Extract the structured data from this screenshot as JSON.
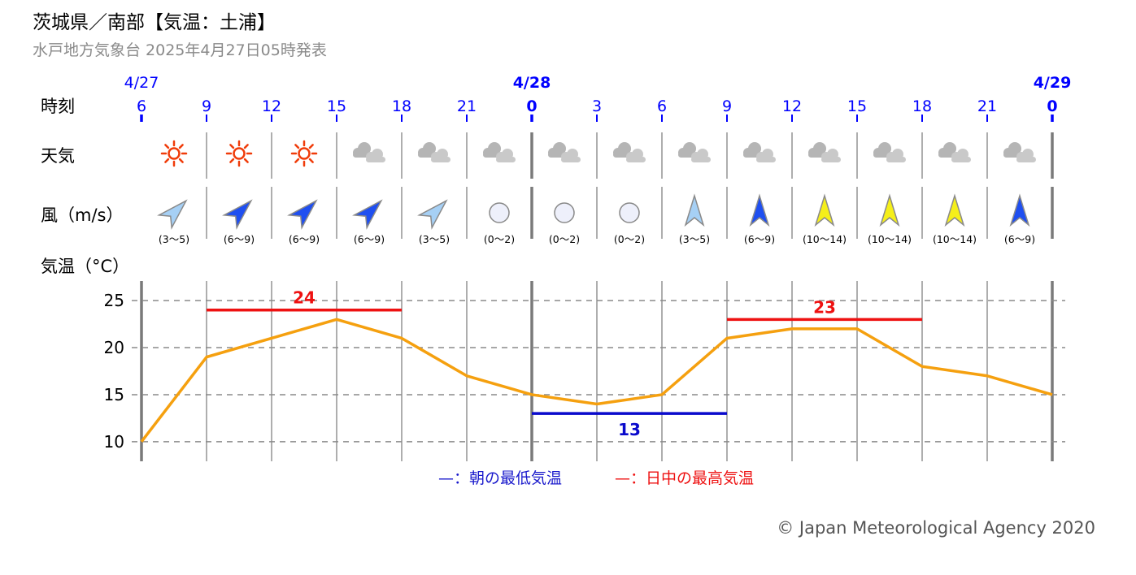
{
  "title": "茨城県／南部【気温：土浦】",
  "subtitle": "水戸地方気象台 2025年4月27日05時発表",
  "copyright": "© Japan Meteorological Agency 2020",
  "row_labels": {
    "time": "時刻",
    "weather": "天気",
    "wind": "風（m/s）",
    "temp": "気温（°C）"
  },
  "dates": [
    {
      "label": "4/27",
      "bold": false
    },
    {
      "label": "4/28",
      "bold": true
    },
    {
      "label": "4/29",
      "bold": true
    }
  ],
  "hours": [
    "6",
    "9",
    "12",
    "15",
    "18",
    "21",
    "0",
    "3",
    "6",
    "9",
    "12",
    "15",
    "18",
    "21",
    "0"
  ],
  "weather": [
    "sunny-icon",
    "sunny-icon",
    "sunny-icon",
    "cloudy-icon",
    "cloudy-icon",
    "cloudy-icon",
    "cloudy-icon",
    "cloudy-icon",
    "cloudy-icon",
    "cloudy-icon",
    "cloudy-icon",
    "cloudy-icon",
    "cloudy-icon",
    "cloudy-icon"
  ],
  "wind": [
    {
      "dir": "southwest",
      "speed": "(3〜5)",
      "color": "#a6d0f5"
    },
    {
      "dir": "southwest",
      "speed": "(6〜9)",
      "color": "#1f4ff0"
    },
    {
      "dir": "southwest",
      "speed": "(6〜9)",
      "color": "#1f4ff0"
    },
    {
      "dir": "southwest",
      "speed": "(6〜9)",
      "color": "#1f4ff0"
    },
    {
      "dir": "southwest",
      "speed": "(3〜5)",
      "color": "#a6d0f5"
    },
    {
      "dir": "calm",
      "speed": "(0〜2)",
      "color": "#eef0fb"
    },
    {
      "dir": "calm",
      "speed": "(0〜2)",
      "color": "#eef0fb"
    },
    {
      "dir": "calm",
      "speed": "(0〜2)",
      "color": "#eef0fb"
    },
    {
      "dir": "south",
      "speed": "(3〜5)",
      "color": "#a6d0f5"
    },
    {
      "dir": "south",
      "speed": "(6〜9)",
      "color": "#1f4ff0"
    },
    {
      "dir": "south",
      "speed": "(10〜14)",
      "color": "#f5ef1a"
    },
    {
      "dir": "south",
      "speed": "(10〜14)",
      "color": "#f5ef1a"
    },
    {
      "dir": "south",
      "speed": "(10〜14)",
      "color": "#f5ef1a"
    },
    {
      "dir": "south",
      "speed": "(6〜9)",
      "color": "#1f4ff0"
    }
  ],
  "colors": {
    "date_blue": "#0000ff",
    "temp_line": "#f5a00f",
    "max_red": "#ee1111",
    "min_blue": "#0a0acc",
    "sun": "#f03c0a",
    "cloud": "#c9c9c9"
  },
  "legend": {
    "min": "—：朝の最低気温",
    "max": "—：日中の最高気温"
  },
  "chart_data": {
    "type": "line",
    "x": [
      "4/27 6",
      "4/27 9",
      "4/27 12",
      "4/27 15",
      "4/27 18",
      "4/27 21",
      "4/28 0",
      "4/28 3",
      "4/28 6",
      "4/28 9",
      "4/28 12",
      "4/28 15",
      "4/28 18",
      "4/28 21",
      "4/29 0"
    ],
    "series": [
      {
        "values": [
          10,
          19,
          21,
          23,
          21,
          17,
          15,
          14,
          15,
          21,
          22,
          22,
          18,
          17,
          15
        ]
      }
    ],
    "yticks": [
      10,
      15,
      20,
      25
    ],
    "ylim": [
      8,
      27
    ],
    "grid": true,
    "annotations": [
      {
        "kind": "max",
        "label": "24",
        "value": 24,
        "from": "4/27 9",
        "to": "4/27 18"
      },
      {
        "kind": "min",
        "label": "13",
        "value": 13,
        "from": "4/28 0",
        "to": "4/28 9"
      },
      {
        "kind": "max",
        "label": "23",
        "value": 23,
        "from": "4/28 9",
        "to": "4/28 18"
      }
    ]
  }
}
